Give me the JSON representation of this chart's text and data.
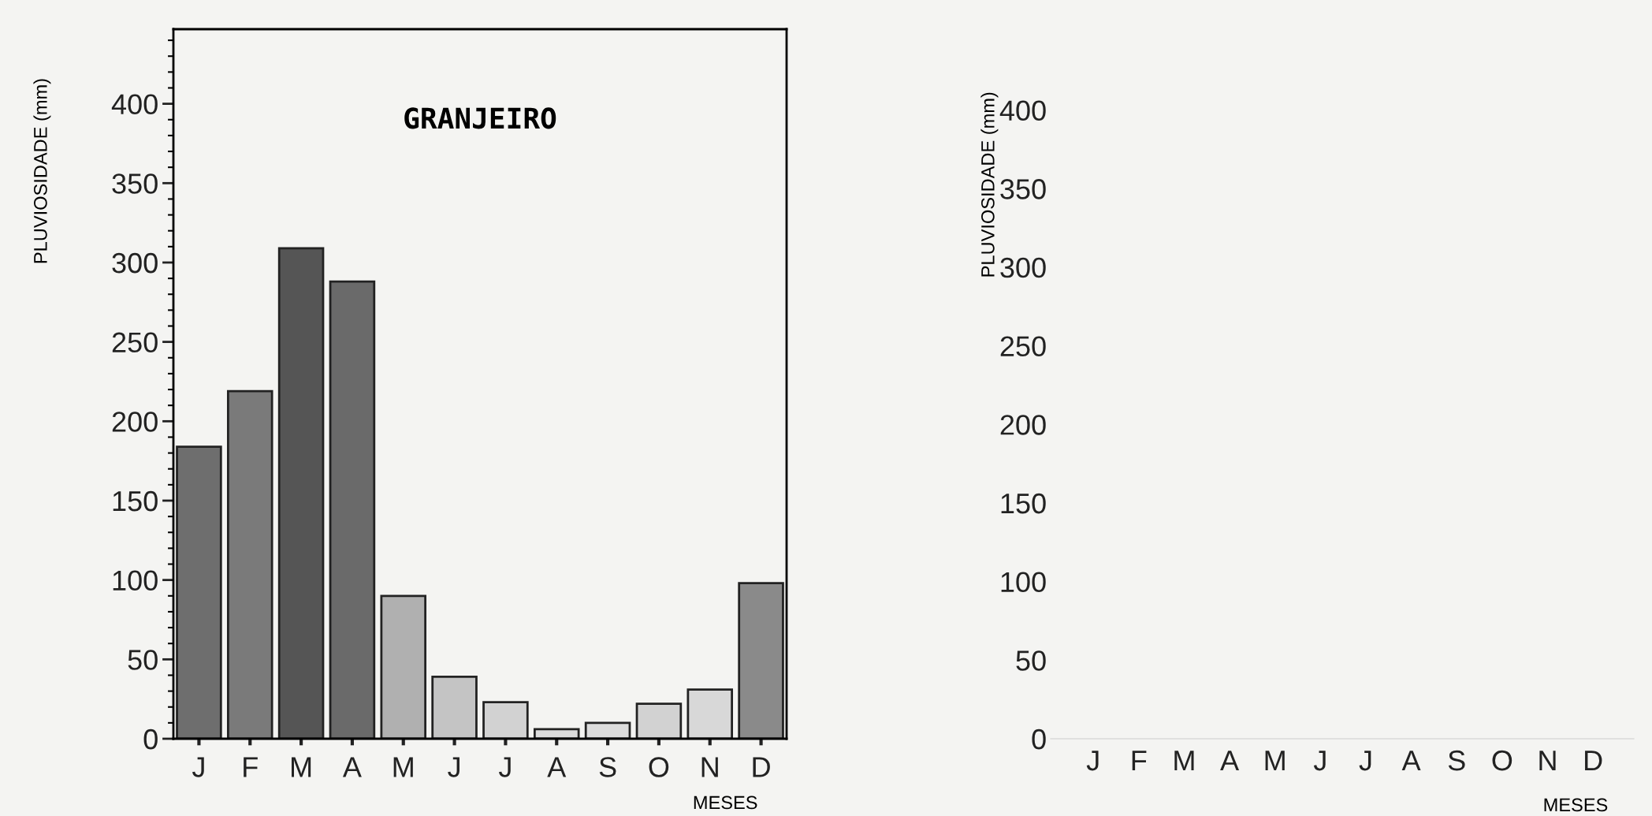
{
  "chart_data": [
    {
      "type": "bar",
      "title": "GRANJEIRO",
      "xlabel": "MESES",
      "ylabel": "PLUVIOSIDADE (mm)",
      "categories": [
        "J",
        "F",
        "M",
        "A",
        "M",
        "J",
        "J",
        "A",
        "S",
        "O",
        "N",
        "D"
      ],
      "values": [
        184,
        219,
        309,
        288,
        90,
        39,
        23,
        6,
        10,
        22,
        31,
        98
      ],
      "colors": [
        "#6e6e6e",
        "#7a7a7a",
        "#555555",
        "#6a6a6a",
        "#b0b0b0",
        "#c4c4c4",
        "#d2d2d2",
        "#dcdcdc",
        "#dcdcdc",
        "#d2d2d2",
        "#d8d8d8",
        "#8a8a8a"
      ],
      "ylim": [
        0,
        447
      ],
      "yticks": [
        0,
        50,
        100,
        150,
        200,
        250,
        300,
        350,
        400
      ],
      "grid": false
    },
    {
      "type": "bar",
      "xlabel": "MESES",
      "ylabel": "PLUVIOSIDADE (mm)",
      "categories": [
        "J",
        "F",
        "M",
        "A",
        "M",
        "J",
        "J",
        "A",
        "S",
        "O",
        "N",
        "D"
      ],
      "values": [
        null,
        null,
        null,
        null,
        null,
        null,
        null,
        null,
        null,
        null,
        null,
        null
      ],
      "ylim": [
        0,
        470
      ],
      "yticks": [
        0,
        50,
        100,
        150,
        200,
        250,
        300,
        350,
        400
      ],
      "grid": false
    }
  ]
}
